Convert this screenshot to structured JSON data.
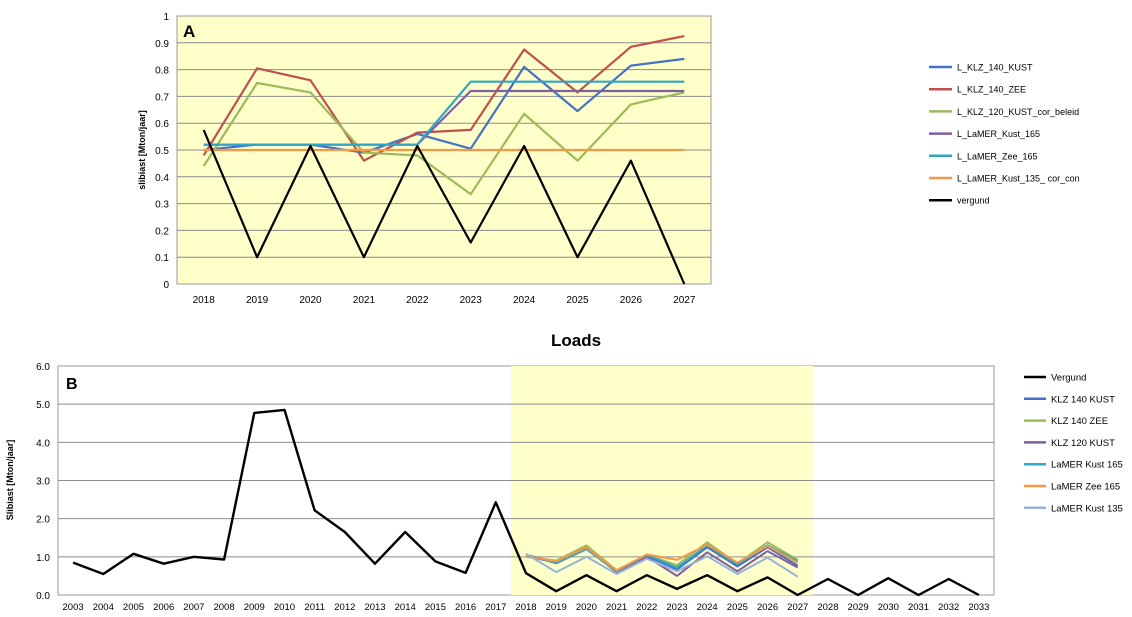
{
  "chart_data": [
    {
      "type": "line",
      "panel_label": "A",
      "title": "",
      "ylabel": "slibiast  [Mton/jaar]",
      "xlabel": "",
      "x": [
        2018,
        2019,
        2020,
        2021,
        2022,
        2023,
        2024,
        2025,
        2026,
        2027
      ],
      "x_tick_labels": [
        "2018",
        "2019",
        "2020",
        "2021",
        "2022",
        "2023",
        "2024",
        "2025",
        "2026",
        "2027"
      ],
      "ylim": [
        0,
        1
      ],
      "y_tick_labels": [
        "0",
        "0.1",
        "0.2",
        "0.3",
        "0.4",
        "0.5",
        "0.6",
        "0.7",
        "0.8",
        "0.9",
        "1"
      ],
      "grid": true,
      "legend_position": "right",
      "plot_background": "#ffffc9",
      "series": [
        {
          "name": "L_KLZ_140_KUST",
          "color": "#4472c4",
          "values": [
            0.5,
            0.52,
            0.52,
            0.49,
            0.56,
            0.505,
            0.81,
            0.645,
            0.815,
            0.84
          ]
        },
        {
          "name": "L_KLZ_140_ZEE",
          "color": "#c0504d",
          "values": [
            0.48,
            0.805,
            0.76,
            0.46,
            0.565,
            0.575,
            0.875,
            0.715,
            0.885,
            0.925
          ]
        },
        {
          "name": "L_KLZ_120_KUST_cor_beleid",
          "color": "#9bbb59",
          "values": [
            0.44,
            0.75,
            0.715,
            0.49,
            0.48,
            0.335,
            0.635,
            0.46,
            0.67,
            0.715
          ]
        },
        {
          "name": "L_LaMER_Kust_165",
          "color": "#7f5ea3",
          "values": [
            0.52,
            0.52,
            0.52,
            0.52,
            0.52,
            0.72,
            0.72,
            0.72,
            0.72,
            0.72
          ]
        },
        {
          "name": "L_LaMER_Zee_165",
          "color": "#31a6c4",
          "values": [
            0.52,
            0.52,
            0.52,
            0.52,
            0.52,
            0.755,
            0.755,
            0.755,
            0.755,
            0.755
          ]
        },
        {
          "name": "L_LaMER_Kust_135_ cor_con",
          "color": "#f79646",
          "values": [
            0.5,
            0.5,
            0.5,
            0.5,
            0.5,
            0.5,
            0.5,
            0.5,
            0.5,
            0.5
          ]
        },
        {
          "name": "vergund",
          "color": "#000000",
          "values": [
            0.575,
            0.1,
            0.515,
            0.1,
            0.515,
            0.155,
            0.515,
            0.1,
            0.46,
            0.0
          ]
        }
      ]
    },
    {
      "type": "line",
      "panel_label": "B",
      "title": "Loads",
      "ylabel": "Slibiast  [Mton/jaar]",
      "xlabel": "",
      "x": [
        2003,
        2004,
        2005,
        2006,
        2007,
        2008,
        2009,
        2010,
        2011,
        2012,
        2013,
        2014,
        2015,
        2016,
        2017,
        2018,
        2019,
        2020,
        2021,
        2022,
        2023,
        2024,
        2025,
        2026,
        2027,
        2028,
        2029,
        2030,
        2031,
        2032,
        2033
      ],
      "x_tick_labels": [
        "2003",
        "2004",
        "2005",
        "2006",
        "2007",
        "2008",
        "2009",
        "2010",
        "2011",
        "2012",
        "2013",
        "2014",
        "2015",
        "2016",
        "2017",
        "2018",
        "2019",
        "2020",
        "2021",
        "2022",
        "2023",
        "2024",
        "2025",
        "2026",
        "2027",
        "2028",
        "2029",
        "2030",
        "2031",
        "2032",
        "2033"
      ],
      "ylim": [
        0,
        6
      ],
      "y_tick_labels": [
        "0.0",
        "1.0",
        "2.0",
        "3.0",
        "4.0",
        "5.0",
        "6.0"
      ],
      "grid": true,
      "legend_position": "right",
      "highlight_range": [
        2018,
        2027
      ],
      "highlight_color": "#ffffc9",
      "series": [
        {
          "name": "Vergund",
          "color": "#000000",
          "x": [
            2003,
            2004,
            2005,
            2006,
            2007,
            2008,
            2009,
            2010,
            2011,
            2012,
            2013,
            2014,
            2015,
            2016,
            2017,
            2018,
            2019,
            2020,
            2021,
            2022,
            2023,
            2024,
            2025,
            2026,
            2027,
            2028,
            2029,
            2030,
            2031,
            2032,
            2033
          ],
          "values": [
            0.85,
            0.55,
            1.08,
            0.82,
            1.0,
            0.93,
            4.77,
            4.85,
            2.22,
            1.65,
            0.82,
            1.65,
            0.88,
            0.58,
            2.43,
            0.57,
            0.1,
            0.52,
            0.1,
            0.52,
            0.16,
            0.52,
            0.1,
            0.46,
            0.0,
            0.42,
            0.0,
            0.44,
            0.0,
            0.42,
            0.0
          ]
        },
        {
          "name": "KLZ 140 KUST",
          "color": "#4472c4",
          "x": [
            2018,
            2019,
            2020,
            2021,
            2022,
            2023,
            2024,
            2025,
            2026,
            2027
          ],
          "values": [
            1.05,
            0.86,
            1.26,
            0.62,
            1.02,
            0.67,
            1.25,
            0.75,
            1.25,
            0.77
          ]
        },
        {
          "name": "KLZ 140 ZEE",
          "color": "#9bbb59",
          "x": [
            2018,
            2019,
            2020,
            2021,
            2022,
            2023,
            2024,
            2025,
            2026,
            2027
          ],
          "values": [
            1.0,
            0.9,
            1.3,
            0.65,
            1.05,
            0.78,
            1.38,
            0.82,
            1.38,
            0.92
          ]
        },
        {
          "name": "KLZ 120 KUST",
          "color": "#7f5ea3",
          "x": [
            2018,
            2019,
            2020,
            2021,
            2022,
            2023,
            2024,
            2025,
            2026,
            2027
          ],
          "values": [
            1.02,
            0.85,
            1.22,
            0.6,
            1.0,
            0.5,
            1.12,
            0.62,
            1.15,
            0.72
          ]
        },
        {
          "name": "LaMER Kust 165",
          "color": "#31a6c4",
          "x": [
            2018,
            2019,
            2020,
            2021,
            2022,
            2023,
            2024,
            2025,
            2026,
            2027
          ],
          "values": [
            1.05,
            0.83,
            1.2,
            0.62,
            1.05,
            0.72,
            1.3,
            0.8,
            1.3,
            0.88
          ]
        },
        {
          "name": "LaMER Zee 165",
          "color": "#f79646",
          "x": [
            2018,
            2019,
            2020,
            2021,
            2022,
            2023,
            2024,
            2025,
            2026,
            2027
          ],
          "values": [
            1.02,
            0.88,
            1.25,
            0.64,
            1.06,
            0.92,
            1.32,
            0.85,
            1.28,
            0.85
          ]
        },
        {
          "name": "LaMER Kust 135",
          "color": "#95b3d7",
          "x": [
            2018,
            2019,
            2020,
            2021,
            2022,
            2023,
            2024,
            2025,
            2026,
            2027
          ],
          "values": [
            1.08,
            0.6,
            1.0,
            0.55,
            0.95,
            0.62,
            1.02,
            0.55,
            0.98,
            0.48
          ]
        }
      ]
    }
  ]
}
